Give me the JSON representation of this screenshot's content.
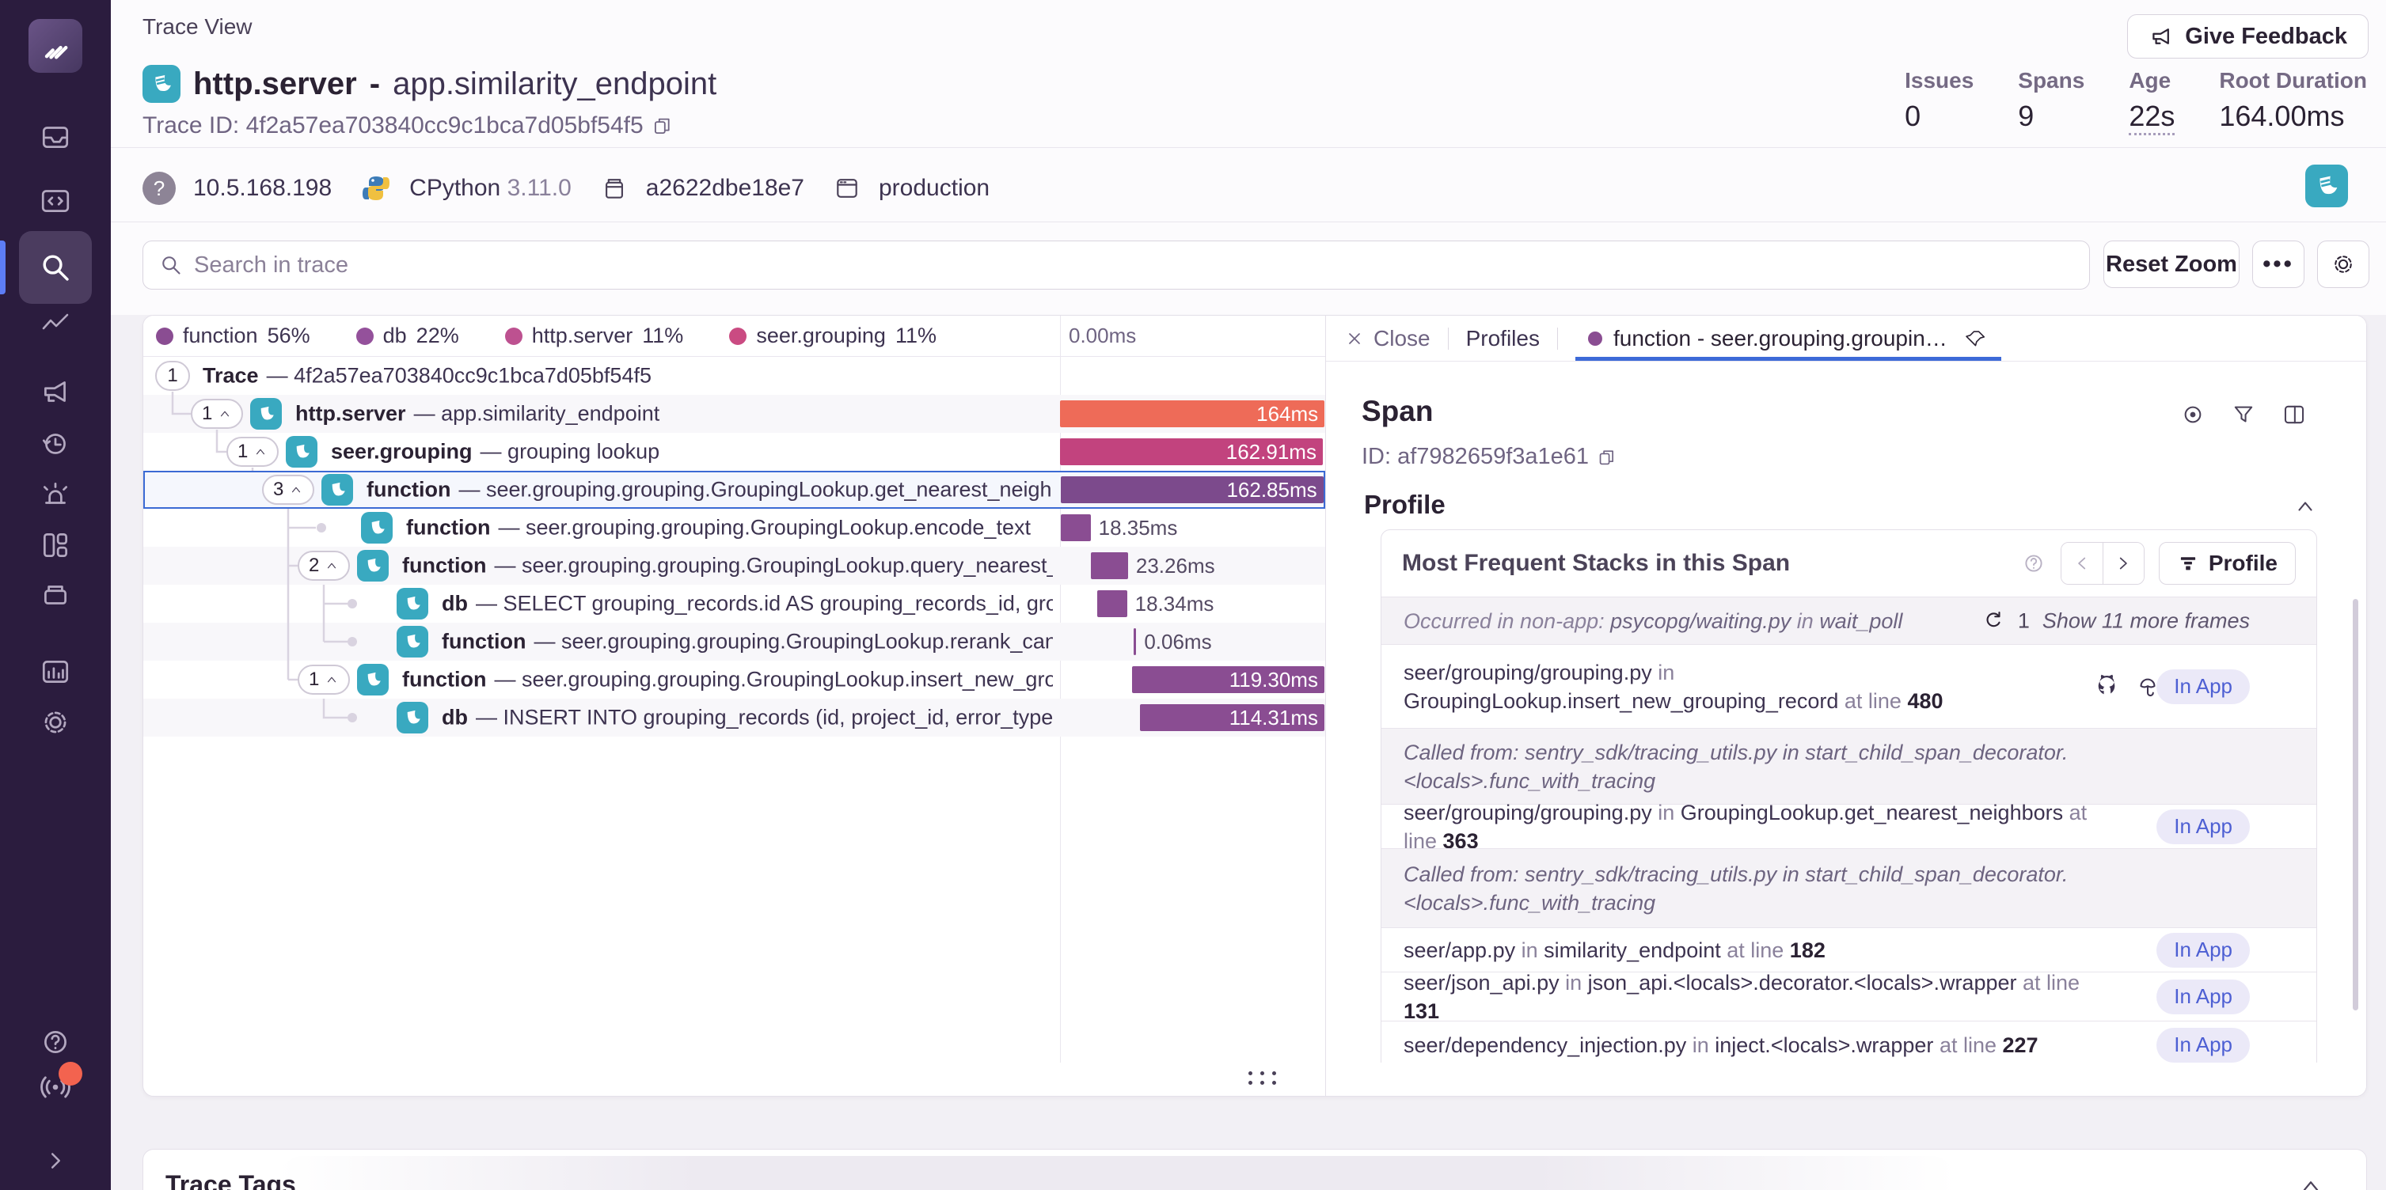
{
  "header": {
    "page_label": "Trace View",
    "title_op": "http.server",
    "title_sep": "-",
    "title_desc": "app.similarity_endpoint",
    "trace_id": "Trace ID: 4f2a57ea703840cc9c1bca7d05bf54f5",
    "feedback_button": "Give Feedback",
    "stats": [
      {
        "label": "Issues",
        "value": "0"
      },
      {
        "label": "Spans",
        "value": "9"
      },
      {
        "label": "Age",
        "value": "22s"
      },
      {
        "label": "Root Duration",
        "value": "164.00ms"
      }
    ]
  },
  "meta": {
    "ip": "10.5.168.198",
    "runtime_name": "CPython",
    "runtime_version": "3.11.0",
    "release": "a2622dbe18e7",
    "environment": "production"
  },
  "toolbar": {
    "search_placeholder": "Search in trace",
    "reset_zoom": "Reset Zoom",
    "more": "•••"
  },
  "legend": [
    {
      "label": "function",
      "pct": "56%",
      "color": "#8a4d92"
    },
    {
      "label": "db",
      "pct": "22%",
      "color": "#94519b"
    },
    {
      "label": "http.server",
      "pct": "11%",
      "color": "#bd5190"
    },
    {
      "label": "seer.grouping",
      "pct": "11%",
      "color": "#ca4b82"
    }
  ],
  "tree": {
    "axis_label": "0.00ms",
    "total_ms": 164.4,
    "rows": [
      {
        "badge": "1",
        "chevron": false,
        "op": "Trace",
        "desc": "— 4f2a57ea703840cc9c1bca7d05bf54f5"
      },
      {
        "badge": "1",
        "chevron": true,
        "op": "http.server",
        "desc": "— app.similarity_endpoint",
        "bar": {
          "start": 0,
          "dur": 164,
          "label": "164ms",
          "color": "#ee6b58",
          "inside": true
        }
      },
      {
        "badge": "1",
        "chevron": true,
        "op": "seer.grouping",
        "desc": "— grouping lookup",
        "bar": {
          "start": 0,
          "dur": 162.91,
          "label": "162.91ms",
          "color": "#c2437e",
          "inside": true
        }
      },
      {
        "badge": "3",
        "chevron": true,
        "op": "function",
        "desc": "— seer.grouping.grouping.GroupingLookup.get_nearest_neighbors",
        "selected": true,
        "bar": {
          "start": 0.4,
          "dur": 162.85,
          "label": "162.85ms",
          "color": "#7c4a8c",
          "inside": true
        }
      },
      {
        "op": "function",
        "desc": "— seer.grouping.grouping.GroupingLookup.encode_text",
        "bar": {
          "start": 0.6,
          "dur": 18.35,
          "label": "18.35ms",
          "color": "#8a4d92",
          "inside": false
        }
      },
      {
        "badge": "2",
        "chevron": true,
        "op": "function",
        "desc": "— seer.grouping.grouping.GroupingLookup.query_nearest_k_neigh",
        "bar": {
          "start": 18.9,
          "dur": 23.26,
          "label": "23.26ms",
          "color": "#8a4d92",
          "inside": false
        }
      },
      {
        "op": "db",
        "desc": "— SELECT grouping_records.id AS grouping_records_id, grouping_re",
        "bar": {
          "start": 23.2,
          "dur": 18.34,
          "label": "18.34ms",
          "color": "#8a4d92",
          "inside": false
        }
      },
      {
        "op": "function",
        "desc": "— seer.grouping.grouping.GroupingLookup.rerank_candidates",
        "bar": {
          "start": 45.8,
          "dur": 0.06,
          "label": "0.06ms",
          "color": "#8a4d92",
          "inside": false
        }
      },
      {
        "badge": "1",
        "chevron": true,
        "op": "function",
        "desc": "— seer.grouping.grouping.GroupingLookup.insert_new_grouping_",
        "bar": {
          "start": 44.6,
          "dur": 119.3,
          "label": "119.30ms",
          "color": "#8a4d92",
          "inside": true
        }
      },
      {
        "op": "db",
        "desc": "— INSERT INTO grouping_records (id, project_id, error_type, stacktra",
        "bar": {
          "start": 49.6,
          "dur": 114.31,
          "label": "114.31ms",
          "color": "#8a4d92",
          "inside": true
        }
      }
    ]
  },
  "drawer": {
    "tabs": {
      "close": "Close",
      "profiles": "Profiles",
      "active": "function - seer.grouping.grouping.G…"
    },
    "span_heading": "Span",
    "span_id": "ID: af7982659f3a1e61",
    "profile_section": "Profile",
    "stacks": {
      "title": "Most Frequent Stacks in this Span",
      "profile_button": "Profile",
      "occurred": {
        "prefix": "Occurred in non-app: ",
        "path": "psycopg/waiting.py",
        "sep": " in ",
        "func": "wait_poll",
        "repeat": "1",
        "more": "Show 11 more frames"
      },
      "in_app_label": "In App",
      "frames": [
        {
          "path": "seer/grouping/grouping.py",
          "sep1": " in ",
          "func": "GroupingLookup.insert_new_grouping_record",
          "sep2": " at line ",
          "line": "480"
        },
        {
          "called1": "Called from: sentry_sdk/tracing_utils.py in start_child_span_decorator.",
          "called2": "<locals>.func_with_tracing"
        },
        {
          "path": "seer/grouping/grouping.py",
          "sep1": " in ",
          "func": "GroupingLookup.get_nearest_neighbors",
          "sep2": " at line ",
          "line": "363"
        },
        {
          "called1": "Called from: sentry_sdk/tracing_utils.py in start_child_span_decorator.",
          "called2": "<locals>.func_with_tracing"
        },
        {
          "path": "seer/app.py",
          "sep1": " in ",
          "func": "similarity_endpoint",
          "sep2": " at line ",
          "line": "182"
        },
        {
          "path": "seer/json_api.py",
          "sep1": " in ",
          "func": "json_api.<locals>.decorator.<locals>.wrapper",
          "sep2": " at line ",
          "line": "131"
        },
        {
          "path": "seer/dependency_injection.py",
          "sep1": " in ",
          "func": "inject.<locals>.wrapper",
          "sep2": " at line ",
          "line": "227"
        }
      ]
    }
  },
  "trace_tags": {
    "title": "Trace Tags"
  }
}
